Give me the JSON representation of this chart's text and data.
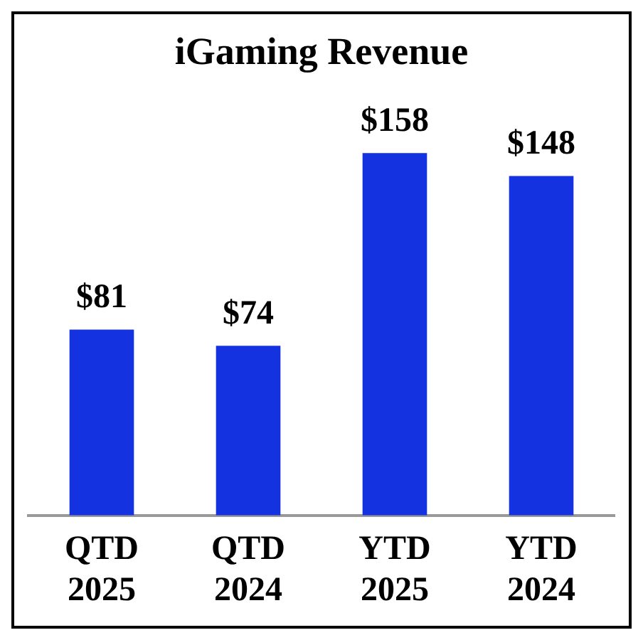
{
  "chart_data": {
    "type": "bar",
    "title": "iGaming Revenue",
    "categories": [
      "QTD 2025",
      "QTD 2024",
      "YTD 2025",
      "YTD 2024"
    ],
    "values": [
      81,
      74,
      158,
      148
    ],
    "color": "#1532e0",
    "value_labels": [
      "$81",
      "$74",
      "$158",
      "$148"
    ],
    "grid": false,
    "legend": false
  }
}
